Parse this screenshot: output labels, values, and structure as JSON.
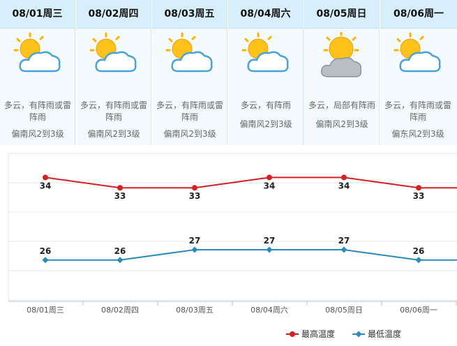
{
  "forecast": {
    "days": [
      {
        "date": "08/01周三",
        "desc": "多云，有阵雨或雷阵雨",
        "wind": "偏南风2到3级",
        "icon": "partly-cloudy-icon"
      },
      {
        "date": "08/02周四",
        "desc": "多云，有阵雨或雷阵雨",
        "wind": "偏南风2到3级",
        "icon": "partly-cloudy-icon"
      },
      {
        "date": "08/03周五",
        "desc": "多云，有阵雨或雷阵雨",
        "wind": "偏南风2到3级",
        "icon": "partly-cloudy-icon"
      },
      {
        "date": "08/04周六",
        "desc": "多云，有阵雨",
        "wind": "偏南风2到3级",
        "icon": "partly-cloudy-icon"
      },
      {
        "date": "08/05周日",
        "desc": "多云，局部有阵雨",
        "wind": "偏南风2到3级",
        "icon": "sun-grey-cloud-icon"
      },
      {
        "date": "08/06周一",
        "desc": "多云，有阵雨或雷阵雨",
        "wind": "偏东风2到3级",
        "icon": "partly-cloudy-icon"
      }
    ]
  },
  "chart_data": {
    "type": "line",
    "categories": [
      "08/01周三",
      "08/02周四",
      "08/03周五",
      "08/04周六",
      "08/05周日",
      "08/06周一"
    ],
    "series": [
      {
        "name": "最高温度",
        "values": [
          34,
          33,
          33,
          34,
          34,
          33
        ],
        "color": "#d42020"
      },
      {
        "name": "最低温度",
        "values": [
          26,
          26,
          27,
          27,
          27,
          26
        ],
        "color": "#2a8ab8"
      }
    ],
    "ylim": [
      22,
      37
    ],
    "grid": true,
    "legend": "bottom-right"
  }
}
